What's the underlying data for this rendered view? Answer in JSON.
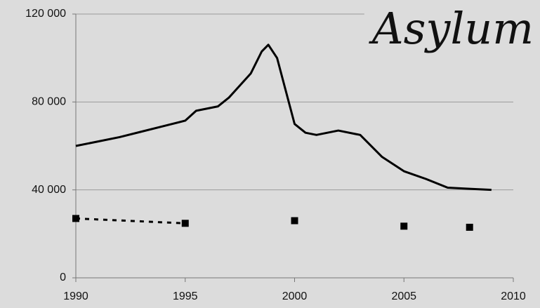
{
  "chart_data": {
    "type": "line",
    "title": "Asylum",
    "xlim": [
      1990,
      2010
    ],
    "xticks": [
      1990,
      1995,
      2000,
      2005,
      2010
    ],
    "ylim": [
      0,
      120000
    ],
    "yticks": [
      0,
      {
        "value": 40000,
        "label": "40 000"
      },
      {
        "value": 80000,
        "label": "80 000"
      },
      {
        "value": 120000,
        "label": "120 000"
      }
    ],
    "grid": true,
    "series": [
      {
        "color": "#000000",
        "style": "solid",
        "x": [
          1990,
          1991,
          1992,
          1993,
          1994,
          1995,
          1995.5,
          1996.5,
          1997,
          1998,
          1998.5,
          1998.8,
          1999.2,
          1999.6,
          2000,
          2000.5,
          2001,
          2002,
          2003,
          2004,
          2005,
          2006,
          2007,
          2008,
          2009
        ],
        "values": [
          60000,
          62000,
          64000,
          66500,
          69000,
          71500,
          76000,
          78000,
          82000,
          93000,
          103000,
          106000,
          100000,
          85000,
          70000,
          66000,
          65000,
          67000,
          65000,
          55000,
          48500,
          45000,
          41000,
          40500,
          40000
        ]
      },
      {
        "color": "#000000",
        "style": "markers",
        "marker": "square",
        "dotted_line_points": 2,
        "x": [
          1990,
          1995,
          2000,
          2005,
          2008
        ],
        "values": [
          27000,
          24800,
          26000,
          23500,
          23000
        ]
      }
    ]
  }
}
